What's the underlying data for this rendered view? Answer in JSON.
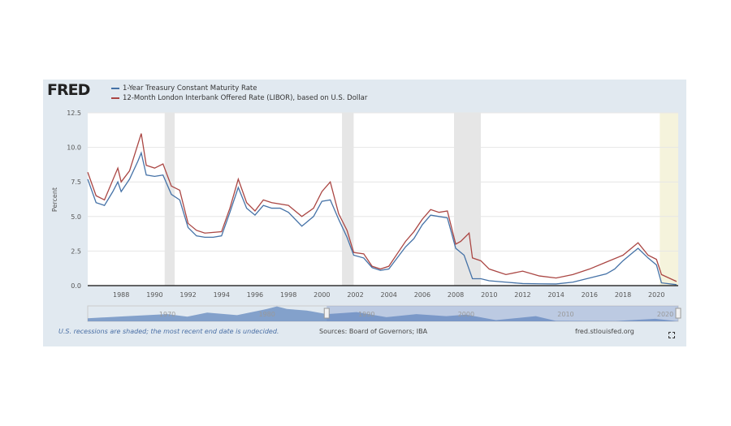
{
  "header": {
    "logo": "FRED"
  },
  "footer": {
    "note": "U.S. recessions are shaded; the most recent end date is undecided.",
    "sources": "Sources: Board of Governors; IBA",
    "site": "fred.stlouisfed.org"
  },
  "chart_data": {
    "type": "line",
    "ylabel": "Percent",
    "ylim": [
      0,
      12.5
    ],
    "xlim": [
      1986,
      2021.3
    ],
    "yticks": [
      "0.0",
      "2.5",
      "5.0",
      "7.5",
      "10.0",
      "12.5"
    ],
    "xticks": [
      "1988",
      "1990",
      "1992",
      "1994",
      "1996",
      "1998",
      "2000",
      "2002",
      "2004",
      "2006",
      "2008",
      "2010",
      "2012",
      "2014",
      "2016",
      "2018",
      "2020"
    ],
    "navigator_labels": [
      "1970",
      "1980",
      "1990",
      "2000",
      "2010",
      "2020"
    ],
    "recessions": [
      [
        1990.6,
        1991.2
      ],
      [
        2001.2,
        2001.9
      ],
      [
        2007.9,
        2009.5
      ]
    ],
    "recession_open": [
      2020.2,
      2021.3
    ],
    "colors": {
      "treasury": "#4572a7",
      "libor": "#aa4643",
      "recession": "#e6e6e6",
      "open_recession": "#f5f3dc"
    },
    "series": [
      {
        "name": "1-Year Treasury Constant Maturity Rate",
        "x": [
          1986,
          1986.5,
          1987,
          1987.5,
          1987.8,
          1988,
          1988.5,
          1989,
          1989.2,
          1989.5,
          1990,
          1990.5,
          1991,
          1991.5,
          1992,
          1992.5,
          1993,
          1993.5,
          1994,
          1994.5,
          1995,
          1995.5,
          1996,
          1996.5,
          1997,
          1997.5,
          1998,
          1998.8,
          1999,
          1999.5,
          2000,
          2000.5,
          2001,
          2001.5,
          2001.9,
          2002.5,
          2003,
          2003.5,
          2004,
          2004.5,
          2005,
          2005.5,
          2006,
          2006.5,
          2007,
          2007.5,
          2008,
          2008.5,
          2009,
          2009.5,
          2010,
          2011,
          2012,
          2013,
          2014,
          2015,
          2016,
          2017,
          2017.5,
          2018,
          2018.5,
          2018.9,
          2019.5,
          2020,
          2020.3,
          2021.2
        ],
        "values": [
          7.7,
          6.0,
          5.8,
          6.8,
          7.5,
          6.8,
          7.7,
          9.0,
          9.6,
          8.0,
          7.9,
          8.0,
          6.6,
          6.2,
          4.2,
          3.6,
          3.5,
          3.5,
          3.6,
          5.3,
          7.1,
          5.6,
          5.1,
          5.8,
          5.6,
          5.6,
          5.3,
          4.3,
          4.5,
          5.0,
          6.1,
          6.2,
          4.8,
          3.5,
          2.2,
          2.0,
          1.3,
          1.1,
          1.2,
          2.0,
          2.8,
          3.4,
          4.4,
          5.1,
          5.0,
          4.9,
          2.7,
          2.2,
          0.5,
          0.5,
          0.35,
          0.25,
          0.15,
          0.13,
          0.12,
          0.25,
          0.55,
          0.85,
          1.2,
          1.8,
          2.3,
          2.7,
          2.0,
          1.5,
          0.2,
          0.07
        ]
      },
      {
        "name": "12-Month London Interbank Offered Rate (LIBOR), based on U.S. Dollar",
        "x": [
          1986,
          1986.5,
          1987,
          1987.8,
          1988,
          1988.5,
          1989.2,
          1989.5,
          1990,
          1990.5,
          1991,
          1991.5,
          1992,
          1992.5,
          1993,
          1994,
          1994.5,
          1995,
          1995.5,
          1996,
          1996.5,
          1997,
          1998,
          1998.8,
          1999.5,
          2000,
          2000.5,
          2001,
          2001.5,
          2001.9,
          2002.5,
          2003,
          2003.5,
          2004,
          2004.5,
          2005,
          2005.5,
          2006,
          2006.5,
          2007,
          2007.5,
          2008,
          2008.3,
          2008.8,
          2009,
          2009.5,
          2010,
          2011,
          2012,
          2013,
          2014,
          2015,
          2016,
          2017,
          2018,
          2018.9,
          2019.5,
          2020,
          2020.3,
          2021.2
        ],
        "values": [
          8.2,
          6.5,
          6.2,
          8.5,
          7.5,
          8.3,
          11.0,
          8.7,
          8.5,
          8.8,
          7.2,
          6.9,
          4.5,
          4.0,
          3.8,
          3.9,
          5.6,
          7.7,
          6.0,
          5.4,
          6.2,
          6.0,
          5.8,
          5.0,
          5.6,
          6.8,
          7.5,
          5.2,
          4.0,
          2.4,
          2.3,
          1.4,
          1.2,
          1.4,
          2.3,
          3.2,
          3.9,
          4.8,
          5.5,
          5.3,
          5.4,
          3.0,
          3.2,
          3.8,
          2.0,
          1.8,
          1.2,
          0.8,
          1.05,
          0.7,
          0.55,
          0.8,
          1.2,
          1.7,
          2.2,
          3.1,
          2.2,
          1.9,
          0.8,
          0.3
        ]
      }
    ]
  }
}
